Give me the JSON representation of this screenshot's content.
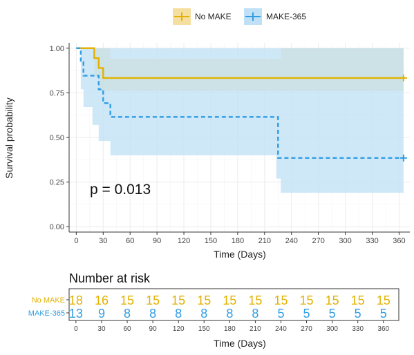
{
  "chart_data": [
    {
      "type": "line",
      "subtype": "kaplan-meier",
      "xlabel": "Time (Days)",
      "ylabel": "Survival probability",
      "xlim": [
        -8,
        372
      ],
      "ylim": [
        -0.03,
        1.03
      ],
      "xticks": [
        0,
        30,
        60,
        90,
        120,
        150,
        180,
        210,
        240,
        270,
        300,
        330,
        360
      ],
      "yticks": [
        "0.00",
        "0.25",
        "0.50",
        "0.75",
        "1.00"
      ],
      "grid": true,
      "legend": {
        "position": "top"
      },
      "annotation": "p = 0.013",
      "series": [
        {
          "name": "No MAKE",
          "color": "#e3b100",
          "ci_color": "#f5dfa0",
          "linestyle": "solid",
          "steps": [
            [
              0,
              1.0
            ],
            [
              20,
              0.944
            ],
            [
              25,
              0.889
            ],
            [
              30,
              0.833
            ],
            [
              365,
              0.833
            ]
          ],
          "ci_steps": [
            [
              0,
              1.0,
              1.0
            ],
            [
              20,
              1.0,
              0.84
            ],
            [
              25,
              1.0,
              0.76
            ],
            [
              38,
              0.94,
              0.76
            ],
            [
              225,
              0.94,
              0.76
            ],
            [
              228,
              1.0,
              0.76
            ],
            [
              365,
              1.0,
              0.76
            ]
          ],
          "censor_x": [
            365
          ]
        },
        {
          "name": "MAKE-365",
          "color": "#2f9de3",
          "ci_color": "#bfe0f5",
          "linestyle": "dashed",
          "steps": [
            [
              0,
              1.0
            ],
            [
              5,
              0.923
            ],
            [
              8,
              0.846
            ],
            [
              25,
              0.769
            ],
            [
              30,
              0.692
            ],
            [
              38,
              0.615
            ],
            [
              220,
              0.615
            ],
            [
              225,
              0.385
            ],
            [
              365,
              0.385
            ]
          ],
          "ci_steps": [
            [
              0,
              1.0,
              1.0
            ],
            [
              5,
              1.0,
              0.77
            ],
            [
              8,
              1.0,
              0.67
            ],
            [
              18,
              1.0,
              0.57
            ],
            [
              25,
              1.0,
              0.48
            ],
            [
              38,
              1.0,
              0.4
            ],
            [
              223,
              1.0,
              0.27
            ],
            [
              228,
              1.0,
              0.19
            ],
            [
              365,
              1.0,
              0.19
            ]
          ],
          "censor_x": [
            365
          ]
        }
      ]
    },
    {
      "type": "table",
      "title": "Number at risk",
      "xlabel": "Time (Days)",
      "xticks": [
        0,
        30,
        60,
        90,
        120,
        150,
        180,
        210,
        240,
        270,
        300,
        330,
        360
      ],
      "rows": [
        {
          "name": "No MAKE",
          "color": "#e3b100",
          "values": [
            18,
            16,
            15,
            15,
            15,
            15,
            15,
            15,
            15,
            15,
            15,
            15,
            15
          ]
        },
        {
          "name": "MAKE-365",
          "color": "#2f9de3",
          "values": [
            13,
            9,
            8,
            8,
            8,
            8,
            8,
            8,
            5,
            5,
            5,
            5,
            5
          ]
        }
      ]
    }
  ]
}
